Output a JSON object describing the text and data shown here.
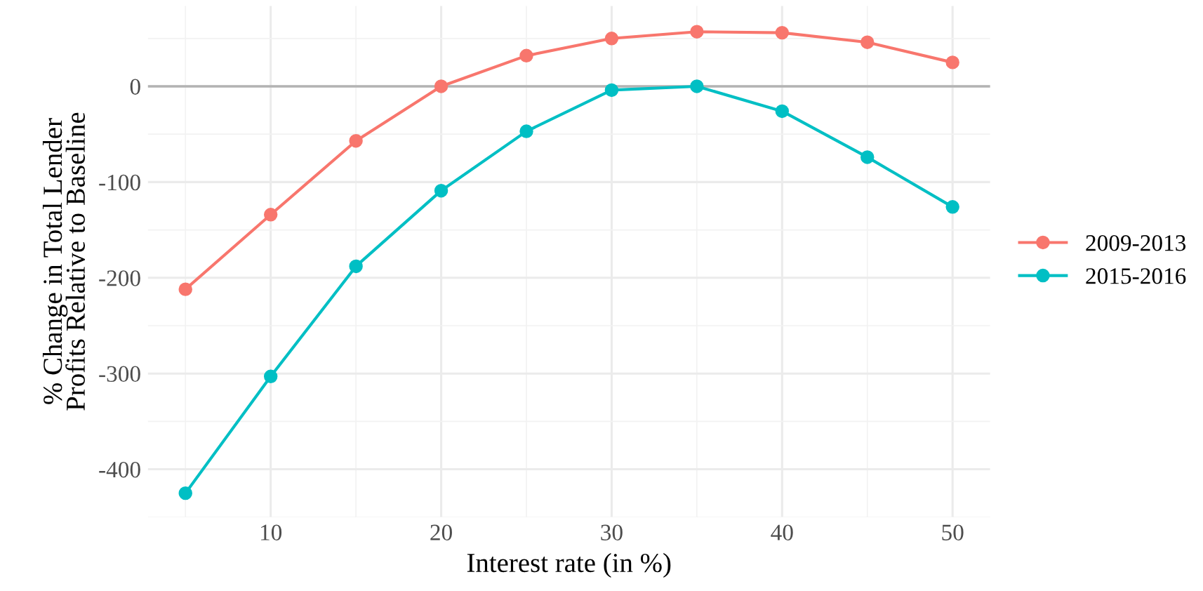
{
  "chart_data": {
    "type": "line",
    "xlabel": "Interest rate (in %)",
    "ylabel": "% Change in Total Lender\nProfits Relative to Baseline",
    "x": [
      5,
      10,
      15,
      20,
      25,
      30,
      35,
      40,
      45,
      50
    ],
    "series": [
      {
        "name": "2009-2013",
        "color": "#f8766d",
        "values": [
          -212,
          -134,
          -57,
          0,
          32,
          50,
          57,
          56,
          46,
          25
        ]
      },
      {
        "name": "2015-2016",
        "color": "#00bfc4",
        "values": [
          -425,
          -303,
          -188,
          -109,
          -47,
          -4,
          0,
          -26,
          -74,
          -126
        ]
      }
    ],
    "xlim": [
      2.8,
      52.2
    ],
    "xticks": [
      10,
      20,
      30,
      40,
      50
    ],
    "ylim": [
      -450,
      84
    ],
    "yticks": [
      -400,
      -300,
      -200,
      -100,
      0
    ],
    "ref_lines": [
      {
        "axis": "y",
        "value": 0,
        "color": "#b3b3b3"
      }
    ],
    "grid": true,
    "legend": "right",
    "marker": "circle",
    "line_style": "solid"
  }
}
